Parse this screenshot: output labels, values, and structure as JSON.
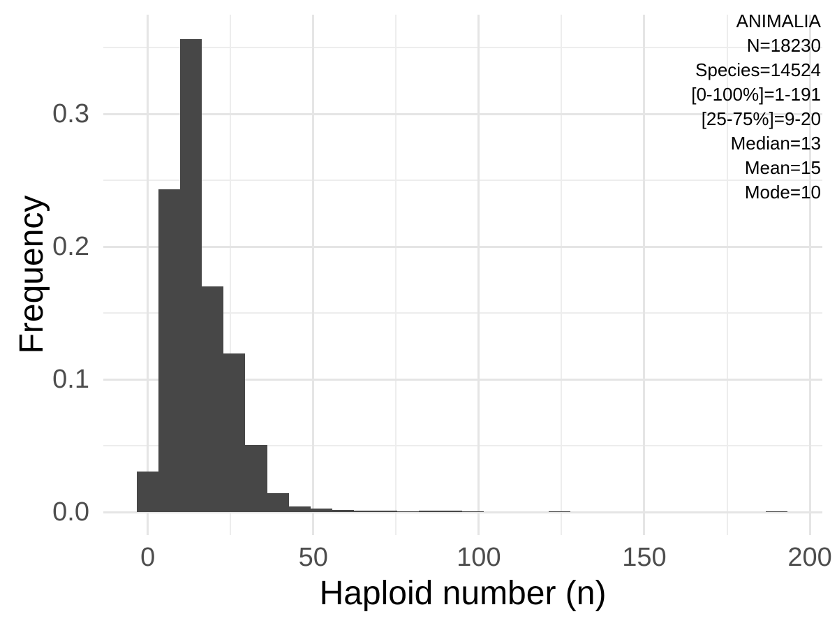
{
  "chart_data": {
    "type": "bar",
    "subtype": "histogram",
    "title": "",
    "xlabel": "Haploid number (n)",
    "ylabel": "Frequency",
    "bin_width": 6.55,
    "bin_centers": [
      0,
      6.55,
      13.1,
      19.65,
      26.2,
      32.75,
      39.3,
      45.85,
      52.4,
      58.95,
      65.5,
      72.05,
      78.6,
      85.15,
      91.7,
      98.25,
      104.8,
      111.35,
      117.9,
      124.45,
      131.0,
      137.55,
      144.1,
      150.65,
      157.2,
      163.75,
      170.3,
      176.85,
      183.4,
      189.95
    ],
    "frequencies": [
      0.0303,
      0.2433,
      0.3566,
      0.1702,
      0.1193,
      0.0505,
      0.014,
      0.0042,
      0.0026,
      0.0014,
      0.001,
      0.0008,
      0.0005,
      0.0013,
      0.0008,
      0.0006,
      0,
      0,
      0,
      0.0004,
      0,
      0,
      0,
      0,
      0,
      0,
      0,
      0,
      0,
      0.0003
    ],
    "x_tick_labels": [
      "0",
      "50",
      "100",
      "150",
      "200"
    ],
    "x_ticks_major": [
      0,
      50,
      100,
      150,
      200
    ],
    "x_ticks_minor": [
      25,
      75,
      125,
      175
    ],
    "y_tick_labels": [
      "0.0",
      "0.1",
      "0.2",
      "0.3"
    ],
    "y_ticks_major": [
      0,
      0.1,
      0.2,
      0.3
    ],
    "y_ticks_minor": [
      0.05,
      0.15,
      0.25,
      0.35
    ],
    "xlim": [
      -13.43,
      203.78
    ],
    "ylim": [
      -0.01735,
      0.37488
    ],
    "grid": true,
    "legend": "none",
    "annotation": {
      "position": "top-right",
      "lines": [
        "ANIMALIA",
        "N=18230",
        "Species=14524",
        "[0-100%]=1-191",
        "[25-75%]=9-20",
        "Median=13",
        "Mean=15",
        "Mode=10"
      ]
    },
    "colors": {
      "bar_fill": "#474747",
      "grid_major": "#E5E5E5",
      "grid_minor": "#EDEDED",
      "tick_label": "#4D4D4D",
      "axis_title": "#000000",
      "annotation_text": "#000000",
      "background": "#FFFFFF"
    }
  }
}
